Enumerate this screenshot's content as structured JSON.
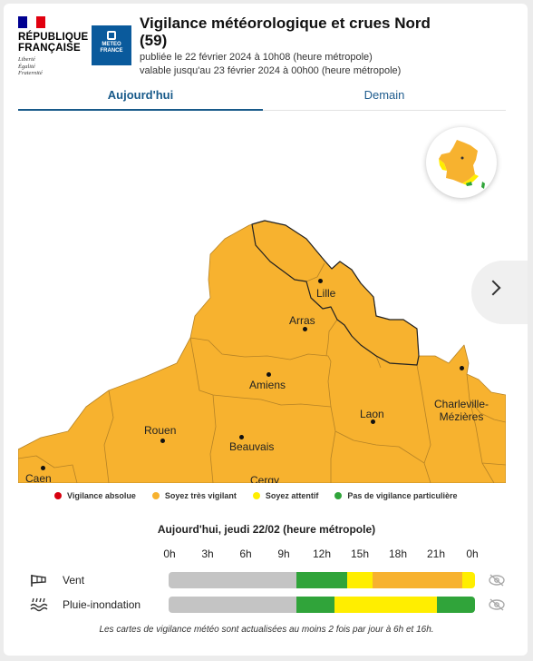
{
  "header": {
    "rf_lines": [
      "RÉPUBLIQUE",
      "FRANÇAISE"
    ],
    "rf_motto": [
      "Liberté",
      "Égalité",
      "Fraternité"
    ],
    "mf_name": "METEO FRANCE",
    "title": "Vigilance météorologique et crues Nord (59)",
    "published": "publiée le 22 février 2024 à 10h08 (heure métropole)",
    "valid_until": "valable jusqu'au 23 février 2024 à 00h00 (heure métropole)"
  },
  "tabs": {
    "today": "Aujourd'hui",
    "tomorrow": "Demain"
  },
  "map": {
    "fill_color": "#f7b22f",
    "border_color": "#c8912a",
    "cities": [
      "Lille",
      "Arras",
      "Amiens",
      "Rouen",
      "Beauvais",
      "Laon",
      "Charleville-Mézières",
      "Caen",
      "Cergy"
    ]
  },
  "legend": [
    {
      "label": "Vigilance absolue",
      "color": "#d7000f"
    },
    {
      "label": "Soyez très vigilant",
      "color": "#f7b22f"
    },
    {
      "label": "Soyez attentif",
      "color": "#ffee00"
    },
    {
      "label": "Pas de vigilance particulière",
      "color": "#30a43a"
    }
  ],
  "timeline": {
    "title": "Aujourd'hui, jeudi 22/02 (heure métropole)",
    "hours": [
      "0h",
      "3h",
      "6h",
      "9h",
      "12h",
      "15h",
      "18h",
      "21h",
      "0h"
    ],
    "rows": [
      {
        "label": "Vent",
        "icon": "wind-icon",
        "segments": [
          {
            "level": "past",
            "color": "#c4c4c4",
            "hours": 10
          },
          {
            "level": "green",
            "color": "#30a43a",
            "hours": 4
          },
          {
            "level": "yellow",
            "color": "#ffee00",
            "hours": 2
          },
          {
            "level": "orange",
            "color": "#f7b22f",
            "hours": 7
          },
          {
            "level": "yellow",
            "color": "#ffee00",
            "hours": 1
          }
        ]
      },
      {
        "label": "Pluie-inondation",
        "icon": "rain-flood-icon",
        "segments": [
          {
            "level": "past",
            "color": "#c4c4c4",
            "hours": 10
          },
          {
            "level": "green",
            "color": "#30a43a",
            "hours": 3
          },
          {
            "level": "yellow",
            "color": "#ffee00",
            "hours": 8
          },
          {
            "level": "green",
            "color": "#30a43a",
            "hours": 3
          }
        ]
      }
    ]
  },
  "footer": "Les cartes de vigilance météo sont actualisées au moins 2 fois par jour à 6h et 16h."
}
